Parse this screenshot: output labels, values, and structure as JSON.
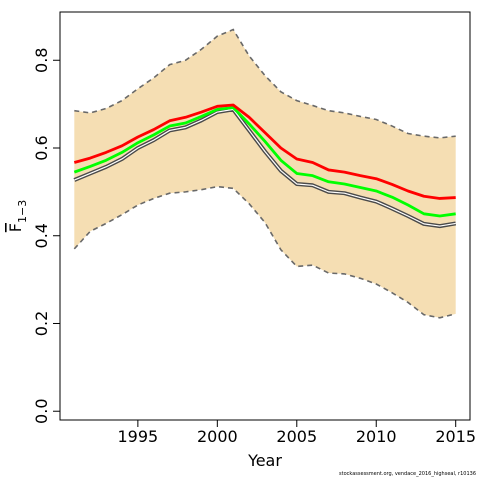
{
  "chart_data": {
    "type": "line",
    "xlabel": "Year",
    "ylabel": "F",
    "ylabel_subscript": "1−3",
    "xlim": [
      1990.1,
      2015.9
    ],
    "ylim": [
      -0.02,
      0.91
    ],
    "xticks": [
      1995,
      2000,
      2005,
      2010,
      2015
    ],
    "yticks": [
      0.0,
      0.2,
      0.4,
      0.6,
      0.8
    ],
    "xtick_labels": [
      "1995",
      "2000",
      "2005",
      "2010",
      "2015"
    ],
    "ytick_labels": [
      "0.0",
      "0.2",
      "0.4",
      "0.6",
      "0.8"
    ],
    "x": [
      1991,
      1992,
      1993,
      1994,
      1995,
      1996,
      1997,
      1998,
      1999,
      2000,
      2001,
      2002,
      2003,
      2004,
      2005,
      2006,
      2007,
      2008,
      2009,
      2010,
      2011,
      2012,
      2013,
      2014,
      2015
    ],
    "band": {
      "upper": [
        0.685,
        0.68,
        0.69,
        0.708,
        0.735,
        0.76,
        0.79,
        0.8,
        0.825,
        0.855,
        0.87,
        0.81,
        0.765,
        0.728,
        0.708,
        0.697,
        0.685,
        0.68,
        0.672,
        0.665,
        0.65,
        0.633,
        0.627,
        0.623,
        0.627
      ],
      "lower": [
        0.37,
        0.41,
        0.428,
        0.448,
        0.47,
        0.485,
        0.497,
        0.5,
        0.505,
        0.512,
        0.508,
        0.473,
        0.43,
        0.368,
        0.33,
        0.333,
        0.315,
        0.313,
        0.303,
        0.29,
        0.27,
        0.248,
        0.22,
        0.213,
        0.222
      ],
      "fill_color": "#f5deb3",
      "edge_color": "#696969"
    },
    "series": [
      {
        "values": [
          0.527,
          0.542,
          0.557,
          0.575,
          0.6,
          0.618,
          0.64,
          0.647,
          0.663,
          0.682,
          0.688,
          0.64,
          0.592,
          0.548,
          0.518,
          0.515,
          0.5,
          0.497,
          0.487,
          0.478,
          0.462,
          0.445,
          0.427,
          0.422,
          0.428
        ],
        "color": "#4a4a4a"
      },
      {
        "values": [
          0.545,
          0.558,
          0.572,
          0.59,
          0.612,
          0.63,
          0.65,
          0.657,
          0.672,
          0.688,
          0.692,
          0.655,
          0.615,
          0.572,
          0.542,
          0.537,
          0.523,
          0.518,
          0.51,
          0.502,
          0.488,
          0.47,
          0.45,
          0.445,
          0.45
        ],
        "color": "#00ff00"
      },
      {
        "values": [
          0.567,
          0.577,
          0.59,
          0.605,
          0.625,
          0.642,
          0.662,
          0.67,
          0.682,
          0.695,
          0.698,
          0.67,
          0.635,
          0.6,
          0.575,
          0.567,
          0.55,
          0.545,
          0.537,
          0.53,
          0.517,
          0.502,
          0.49,
          0.485,
          0.487
        ],
        "color": "#ff0000"
      }
    ]
  },
  "footnote": "stockassessment.org, vendace_2016_highseal, r10136"
}
